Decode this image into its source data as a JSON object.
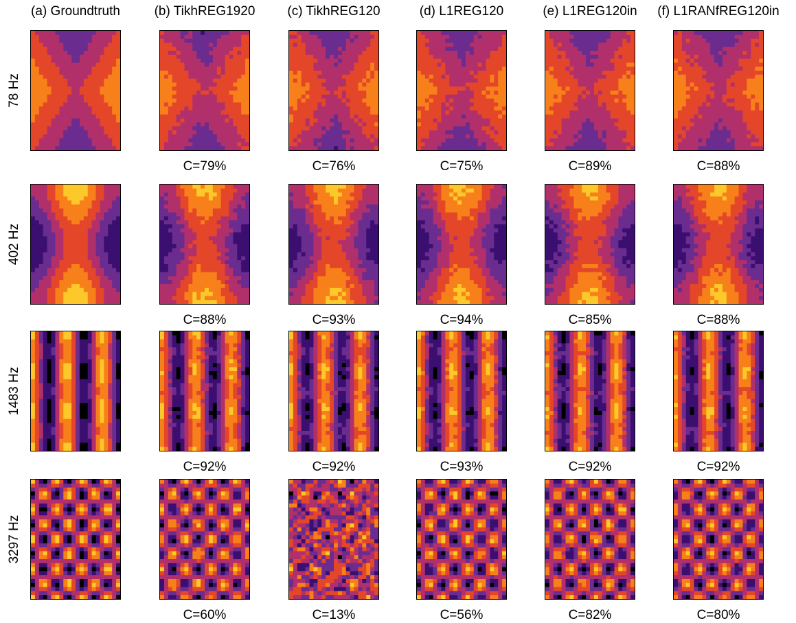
{
  "columns": [
    {
      "title": "(a) Groundtruth"
    },
    {
      "title": "(b) TikhREG1920"
    },
    {
      "title": "(c) TikhREG120"
    },
    {
      "title": "(d) L1REG120"
    },
    {
      "title": "(e) L1REG120in"
    },
    {
      "title": "(f) L1RANfREG120in"
    }
  ],
  "rows": [
    {
      "label": "78 Hz",
      "correlations": [
        "",
        "C=79%",
        "C=76%",
        "C=75%",
        "C=89%",
        "C=88%"
      ]
    },
    {
      "label": "402 Hz",
      "correlations": [
        "",
        "C=88%",
        "C=93%",
        "C=94%",
        "C=85%",
        "C=88%"
      ]
    },
    {
      "label": "1483 Hz",
      "correlations": [
        "",
        "C=92%",
        "C=92%",
        "C=93%",
        "C=92%",
        "C=92%"
      ]
    },
    {
      "label": "3297 Hz",
      "correlations": [
        "",
        "C=60%",
        "C=13%",
        "C=56%",
        "C=82%",
        "C=80%"
      ]
    }
  ],
  "colormap": [
    "#000000",
    "#3b0f70",
    "#6a2c8f",
    "#b1306b",
    "#e4462a",
    "#f7801a",
    "#fdc92a",
    "#ffff9e"
  ]
}
